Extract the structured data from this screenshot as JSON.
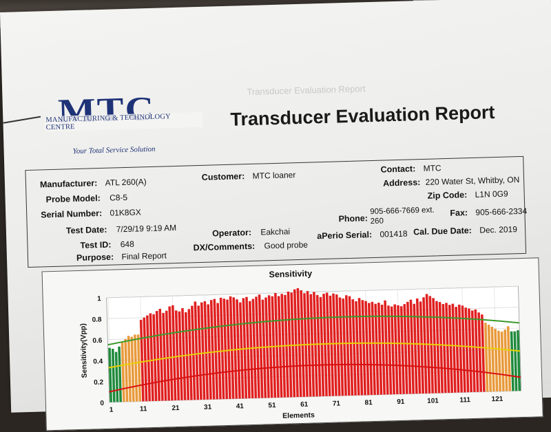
{
  "logo": {
    "mark": "MTC",
    "company": "MANUFACTURING & TECHNOLOGY CENTRE",
    "tagline": "Your Total Service Solution"
  },
  "report_title": "Transducer Evaluation Report",
  "ghost_text": "Transducer Evaluation Report",
  "info": {
    "manufacturer": {
      "label": "Manufacturer:",
      "value": "ATL 260(A)"
    },
    "probe_model": {
      "label": "Probe Model:",
      "value": "C8-5"
    },
    "serial_number": {
      "label": "Serial Number:",
      "value": "01K8GX"
    },
    "test_date": {
      "label": "Test Date:",
      "value": "7/29/19 9:19 AM"
    },
    "test_id": {
      "label": "Test ID:",
      "value": "648"
    },
    "purpose": {
      "label": "Purpose:",
      "value": "Final Report"
    },
    "customer": {
      "label": "Customer:",
      "value": "MTC loaner"
    },
    "operator": {
      "label": "Operator:",
      "value": "Eakchai"
    },
    "dx_comments": {
      "label": "DX/Comments:",
      "value": "Good probe"
    },
    "contact": {
      "label": "Contact:",
      "value": "MTC"
    },
    "address": {
      "label": "Address:",
      "value": "220 Water St, Whitby, ON"
    },
    "zip_code": {
      "label": "Zip Code:",
      "value": "L1N 0G9"
    },
    "phone": {
      "label": "Phone:",
      "value_line1": "905-666-7669 ext.",
      "value_line2": "260"
    },
    "fax": {
      "label": "Fax:",
      "value": "905-666-2334"
    },
    "aperio_serial": {
      "label": "aPerio Serial:",
      "value": "001418"
    },
    "cal_due_date": {
      "label": "Cal. Due Date:",
      "value": "Dec. 2019"
    }
  },
  "chart_data": {
    "type": "bar",
    "title": "Sensitivity",
    "xlabel": "Elements",
    "ylabel": "Sensitivity(Vpp)",
    "ylim": [
      0,
      1
    ],
    "yticks": [
      "0",
      "0.2",
      "0.4",
      "0.6",
      "0.8",
      "1"
    ],
    "xticks": [
      "1",
      "11",
      "21",
      "31",
      "41",
      "51",
      "61",
      "71",
      "81",
      "91",
      "101",
      "111",
      "121"
    ],
    "grid": true,
    "colors": {
      "green": "#1f8a3c",
      "orange": "#e89a3c",
      "red": "#e02020",
      "green_line": "#3a9a2a",
      "yellow_line": "#e8d000",
      "red_line": "#d81010"
    },
    "x": [
      1,
      2,
      3,
      4,
      5,
      6,
      7,
      8,
      9,
      10,
      11,
      12,
      13,
      14,
      15,
      16,
      17,
      18,
      19,
      20,
      21,
      22,
      23,
      24,
      25,
      26,
      27,
      28,
      29,
      30,
      31,
      32,
      33,
      34,
      35,
      36,
      37,
      38,
      39,
      40,
      41,
      42,
      43,
      44,
      45,
      46,
      47,
      48,
      49,
      50,
      51,
      52,
      53,
      54,
      55,
      56,
      57,
      58,
      59,
      60,
      61,
      62,
      63,
      64,
      65,
      66,
      67,
      68,
      69,
      70,
      71,
      72,
      73,
      74,
      75,
      76,
      77,
      78,
      79,
      80,
      81,
      82,
      83,
      84,
      85,
      86,
      87,
      88,
      89,
      90,
      91,
      92,
      93,
      94,
      95,
      96,
      97,
      98,
      99,
      100,
      101,
      102,
      103,
      104,
      105,
      106,
      107,
      108,
      109,
      110,
      111,
      112,
      113,
      114,
      115,
      116,
      117,
      118,
      119,
      120,
      121,
      122,
      123,
      124,
      125,
      126,
      127,
      128
    ],
    "values": [
      0.52,
      0.51,
      0.48,
      0.53,
      0.57,
      0.6,
      0.63,
      0.62,
      0.64,
      0.64,
      0.78,
      0.8,
      0.82,
      0.84,
      0.83,
      0.86,
      0.88,
      0.84,
      0.86,
      0.9,
      0.91,
      0.86,
      0.85,
      0.88,
      0.84,
      0.87,
      0.9,
      0.94,
      0.9,
      0.93,
      0.94,
      0.91,
      0.95,
      0.96,
      0.92,
      0.97,
      0.96,
      0.95,
      0.98,
      0.97,
      0.95,
      0.92,
      0.96,
      0.97,
      0.93,
      0.95,
      0.97,
      0.99,
      0.94,
      0.96,
      0.98,
      0.97,
      1.0,
      0.97,
      0.99,
      0.98,
      1.01,
      1.0,
      1.03,
      1.04,
      1.02,
      0.99,
      1.01,
      0.98,
      1.0,
      0.97,
      0.95,
      0.98,
      0.99,
      0.96,
      0.98,
      0.97,
      0.94,
      0.93,
      0.96,
      0.95,
      0.92,
      0.9,
      0.93,
      0.91,
      0.9,
      0.88,
      0.89,
      0.87,
      0.88,
      0.86,
      0.9,
      0.85,
      0.84,
      0.86,
      0.85,
      0.84,
      0.86,
      0.88,
      0.9,
      0.86,
      0.91,
      0.88,
      0.92,
      0.95,
      0.93,
      0.91,
      0.88,
      0.87,
      0.85,
      0.86,
      0.84,
      0.85,
      0.82,
      0.84,
      0.83,
      0.81,
      0.8,
      0.78,
      0.79,
      0.76,
      0.74,
      0.66,
      0.64,
      0.62,
      0.6,
      0.58,
      0.57,
      0.59,
      0.62,
      0.57,
      0.57,
      0.58
    ],
    "bar_colors": [
      "green",
      "green",
      "green",
      "green",
      "orange",
      "orange",
      "orange",
      "orange",
      "orange",
      "orange",
      "red",
      "red",
      "red",
      "red",
      "red",
      "red",
      "red",
      "red",
      "red",
      "red",
      "red",
      "red",
      "red",
      "red",
      "red",
      "red",
      "red",
      "red",
      "red",
      "red",
      "red",
      "red",
      "red",
      "red",
      "red",
      "red",
      "red",
      "red",
      "red",
      "red",
      "red",
      "red",
      "red",
      "red",
      "red",
      "red",
      "red",
      "red",
      "red",
      "red",
      "red",
      "red",
      "red",
      "red",
      "red",
      "red",
      "red",
      "red",
      "red",
      "red",
      "red",
      "red",
      "red",
      "red",
      "red",
      "red",
      "red",
      "red",
      "red",
      "red",
      "red",
      "red",
      "red",
      "red",
      "red",
      "red",
      "red",
      "red",
      "red",
      "red",
      "red",
      "red",
      "red",
      "red",
      "red",
      "red",
      "red",
      "red",
      "red",
      "red",
      "red",
      "red",
      "red",
      "red",
      "red",
      "red",
      "red",
      "red",
      "red",
      "red",
      "red",
      "red",
      "red",
      "red",
      "red",
      "red",
      "red",
      "red",
      "red",
      "red",
      "red",
      "red",
      "red",
      "red",
      "red",
      "red",
      "red",
      "orange",
      "orange",
      "orange",
      "orange",
      "orange",
      "orange",
      "orange",
      "orange",
      "green",
      "green",
      "green"
    ],
    "reference_lines": [
      {
        "color": "green",
        "start": 0.55,
        "peak": 0.75,
        "end": 0.65
      },
      {
        "color": "yellow",
        "start": 0.33,
        "peak": 0.5,
        "end": 0.38
      },
      {
        "color": "red",
        "start": 0.1,
        "peak": 0.3,
        "end": 0.13
      }
    ]
  }
}
